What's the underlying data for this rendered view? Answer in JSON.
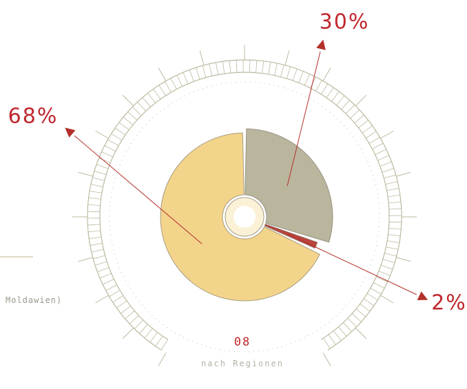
{
  "chart_data": {
    "type": "pie",
    "values": [
      30,
      2,
      68
    ],
    "value_labels": [
      "30%",
      "2%",
      "68%"
    ],
    "colors": [
      "#b3ad92",
      "#b3302a",
      "#f2cf7e"
    ],
    "side_label": "Moldawien)",
    "number": "08",
    "caption": "nach Regionen"
  }
}
